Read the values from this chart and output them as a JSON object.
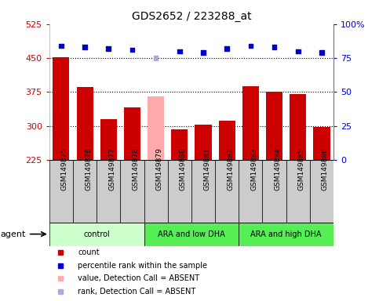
{
  "title": "GDS2652 / 223288_at",
  "samples": [
    "GSM149875",
    "GSM149876",
    "GSM149877",
    "GSM149878",
    "GSM149879",
    "GSM149880",
    "GSM149881",
    "GSM149882",
    "GSM149883",
    "GSM149884",
    "GSM149885",
    "GSM149886"
  ],
  "bar_values": [
    451,
    385,
    314,
    340,
    365,
    293,
    302,
    312,
    388,
    375,
    370,
    298
  ],
  "bar_colors": [
    "#cc0000",
    "#cc0000",
    "#cc0000",
    "#cc0000",
    "#ffaaaa",
    "#cc0000",
    "#cc0000",
    "#cc0000",
    "#cc0000",
    "#cc0000",
    "#cc0000",
    "#cc0000"
  ],
  "percentile_values": [
    84,
    83,
    82,
    81,
    75,
    80,
    79,
    82,
    84,
    83,
    80,
    79
  ],
  "percentile_colors": [
    "#0000cc",
    "#0000cc",
    "#0000cc",
    "#0000cc",
    "#aaaadd",
    "#0000cc",
    "#0000cc",
    "#0000cc",
    "#0000cc",
    "#0000cc",
    "#0000cc",
    "#0000cc"
  ],
  "ylim_left": [
    225,
    525
  ],
  "ylim_right": [
    0,
    100
  ],
  "yticks_left": [
    225,
    300,
    375,
    450,
    525
  ],
  "yticks_right": [
    0,
    25,
    50,
    75,
    100
  ],
  "hgrid_lines": [
    300,
    375,
    450
  ],
  "groups": [
    {
      "label": "control",
      "start": 0,
      "end": 3,
      "color": "#ccffcc"
    },
    {
      "label": "ARA and low DHA",
      "start": 4,
      "end": 7,
      "color": "#55ee55"
    },
    {
      "label": "ARA and high DHA",
      "start": 8,
      "end": 11,
      "color": "#55ee55"
    }
  ],
  "legend_items": [
    {
      "color": "#cc0000",
      "label": "count"
    },
    {
      "color": "#0000cc",
      "label": "percentile rank within the sample"
    },
    {
      "color": "#ffaaaa",
      "label": "value, Detection Call = ABSENT"
    },
    {
      "color": "#aaaadd",
      "label": "rank, Detection Call = ABSENT"
    }
  ],
  "title_color": "#000000",
  "left_axis_color": "#cc0000",
  "right_axis_color": "#0000cc",
  "bar_width": 0.7,
  "agent_label": "agent",
  "sample_box_color": "#cccccc",
  "plot_bg_color": "#ffffff"
}
